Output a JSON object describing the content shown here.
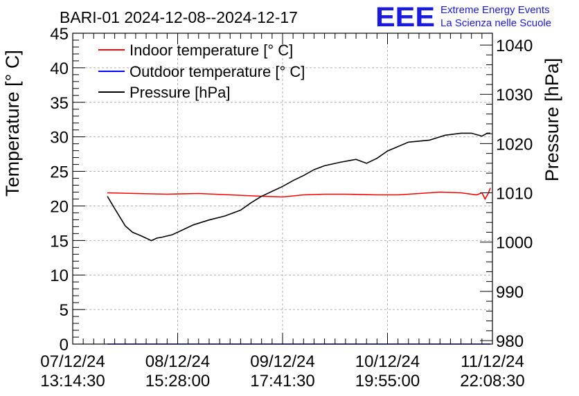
{
  "chart_data": {
    "type": "line",
    "title": "BARI-01 2024-12-08--2024-12-17",
    "ylabel": "Temperature [° C]",
    "y2label": "Pressure [hPa]",
    "ylim": [
      0,
      45
    ],
    "y2lim": [
      979.3,
      1042.4
    ],
    "xlim": [
      0,
      4.0
    ],
    "grid": true,
    "legend_position": "top-left",
    "y_ticks": [
      "0",
      "5",
      "10",
      "15",
      "20",
      "25",
      "30",
      "35",
      "40",
      "45"
    ],
    "y2_ticks": [
      "980",
      "990",
      "1000",
      "1010",
      "1020",
      "1030",
      "1040"
    ],
    "x_ticks": [
      {
        "date": "07/12/24",
        "time": "13:14:30"
      },
      {
        "date": "08/12/24",
        "time": "15:28:00"
      },
      {
        "date": "09/12/24",
        "time": "17:41:30"
      },
      {
        "date": "10/12/24",
        "time": "19:55:00"
      },
      {
        "date": "11/12/24",
        "time": "22:08:30"
      }
    ],
    "series": [
      {
        "name": "Indoor temperature [° C]",
        "axis": "left",
        "color": "#ff0000",
        "x": [
          0.33,
          0.6,
          0.9,
          1.2,
          1.5,
          1.8,
          2.0,
          2.2,
          2.4,
          2.6,
          2.9,
          3.1,
          3.3,
          3.5,
          3.7,
          3.85,
          3.9,
          3.93,
          3.96,
          3.98
        ],
        "y": [
          21.9,
          21.8,
          21.7,
          21.8,
          21.6,
          21.4,
          21.3,
          21.6,
          21.7,
          21.7,
          21.6,
          21.6,
          21.8,
          22.0,
          21.9,
          21.6,
          21.9,
          21.0,
          21.8,
          22.6
        ]
      },
      {
        "name": "Outdoor temperature [° C]",
        "axis": "left",
        "color": "#0000ff",
        "x": [
          0.33,
          3.98
        ],
        "y": [
          0,
          0
        ]
      },
      {
        "name": "Pressure [hPa]",
        "axis": "right",
        "color": "#000000",
        "x": [
          0.33,
          0.4,
          0.5,
          0.57,
          0.65,
          0.75,
          0.8,
          0.85,
          0.95,
          1.05,
          1.15,
          1.3,
          1.45,
          1.6,
          1.7,
          1.8,
          1.9,
          2.0,
          2.1,
          2.2,
          2.3,
          2.4,
          2.55,
          2.7,
          2.8,
          2.9,
          3.0,
          3.2,
          3.4,
          3.55,
          3.7,
          3.8,
          3.9,
          3.95,
          3.98
        ],
        "y": [
          1009.3,
          1006.8,
          1003.3,
          1002.0,
          1001.3,
          1000.3,
          1000.8,
          1001.0,
          1001.5,
          1002.5,
          1003.5,
          1004.5,
          1005.3,
          1006.5,
          1008.0,
          1009.3,
          1010.3,
          1011.3,
          1012.5,
          1013.5,
          1014.7,
          1015.5,
          1016.2,
          1016.8,
          1016.0,
          1017.0,
          1018.5,
          1020.3,
          1020.7,
          1021.7,
          1022.1,
          1022.1,
          1021.5,
          1022.1,
          1022.1
        ]
      }
    ]
  },
  "branding": {
    "logo_text": "EEE",
    "line1": "Extreme Energy Events",
    "line2": "La Scienza nelle Scuole",
    "color": "#1a1adc"
  },
  "colors": {
    "indoor": "#ff0000",
    "outdoor": "#0000ff",
    "pressure": "#000000",
    "grid": "#b0b0b0"
  }
}
